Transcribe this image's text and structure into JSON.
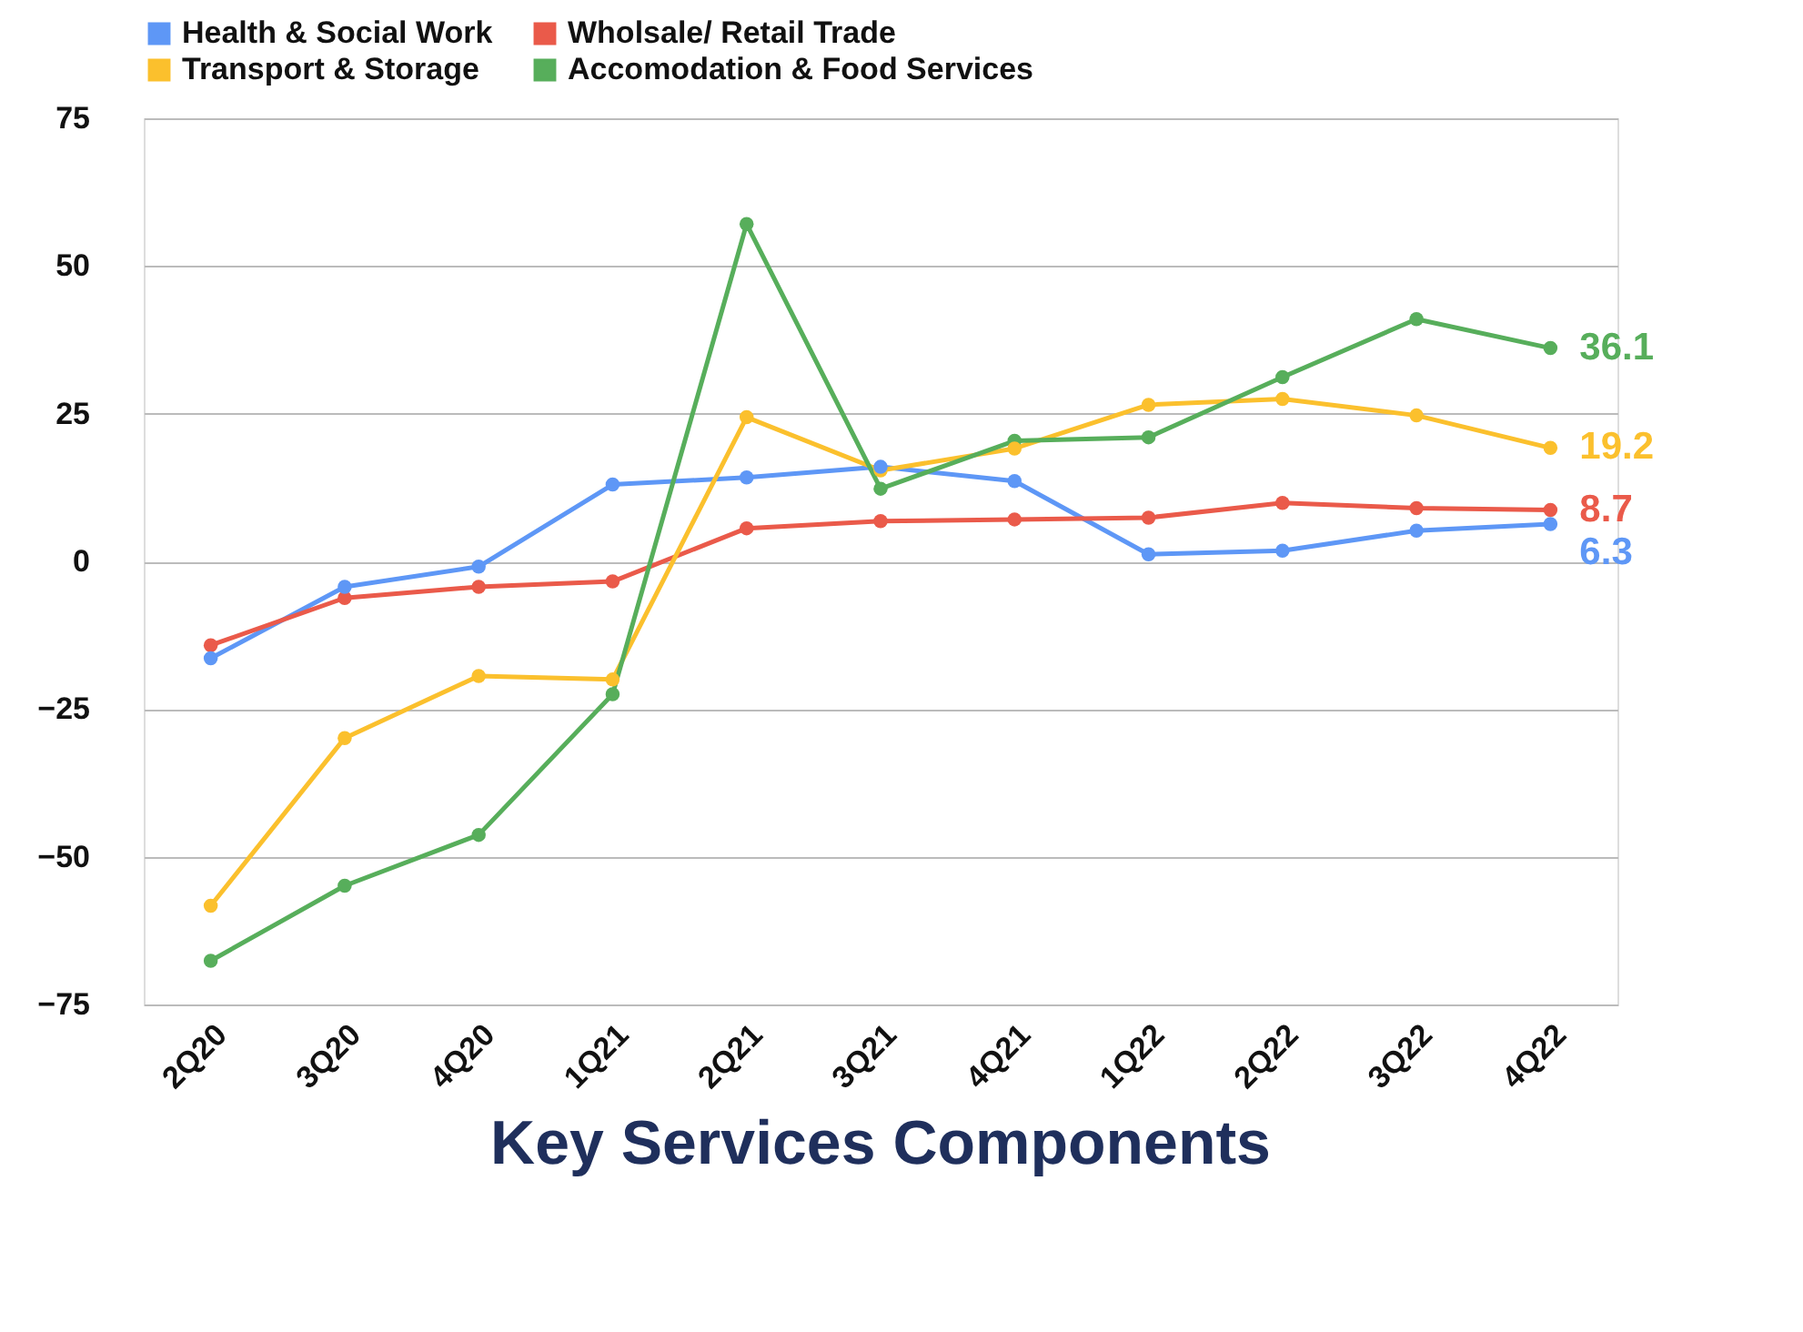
{
  "chart_data": {
    "type": "line",
    "title": "Key Services Components",
    "categories": [
      "2Q20",
      "3Q20",
      "4Q20",
      "1Q21",
      "2Q21",
      "3Q21",
      "4Q21",
      "1Q22",
      "2Q22",
      "3Q22",
      "4Q22"
    ],
    "series": [
      {
        "name": "Health & Social Work",
        "color": "#5e97f6",
        "values": [
          -16.4,
          -4.3,
          -0.9,
          13,
          14.2,
          16,
          13.6,
          1.2,
          1.8,
          5.2,
          6.3
        ],
        "value_labels": [
          null,
          null,
          null,
          null,
          null,
          null,
          null,
          null,
          null,
          null,
          "6.3"
        ]
      },
      {
        "name": "Wholsale/ Retail Trade",
        "color": "#ea5a4a",
        "values": [
          -14.2,
          -6.2,
          -4.3,
          -3.4,
          5.6,
          6.8,
          7.1,
          7.4,
          9.9,
          9,
          8.7
        ],
        "value_labels": [
          null,
          null,
          null,
          null,
          null,
          null,
          null,
          null,
          null,
          null,
          "8.7"
        ]
      },
      {
        "name": "Transport & Storage",
        "color": "#fbc02d",
        "values": [
          -58.3,
          -29.9,
          -19.4,
          -20,
          24.4,
          15.4,
          19.1,
          26.5,
          27.5,
          24.7,
          19.2
        ],
        "value_labels": [
          null,
          null,
          null,
          null,
          null,
          null,
          null,
          null,
          null,
          null,
          "19.2"
        ]
      },
      {
        "name": "Accomodation & Food Services",
        "color": "#57ae5b",
        "values": [
          -67.6,
          -54.9,
          -46.3,
          -22.5,
          57.1,
          12.3,
          20.4,
          21,
          31.2,
          41,
          36.1
        ],
        "value_labels": [
          null,
          null,
          null,
          null,
          null,
          null,
          null,
          null,
          null,
          null,
          "36.1"
        ]
      }
    ],
    "ylim": [
      -75,
      75
    ],
    "yticks": [
      -75,
      -50,
      -25,
      0,
      25,
      50,
      75
    ],
    "grid": "y",
    "legend": "top",
    "marker": "circle",
    "line_style": "solid"
  }
}
